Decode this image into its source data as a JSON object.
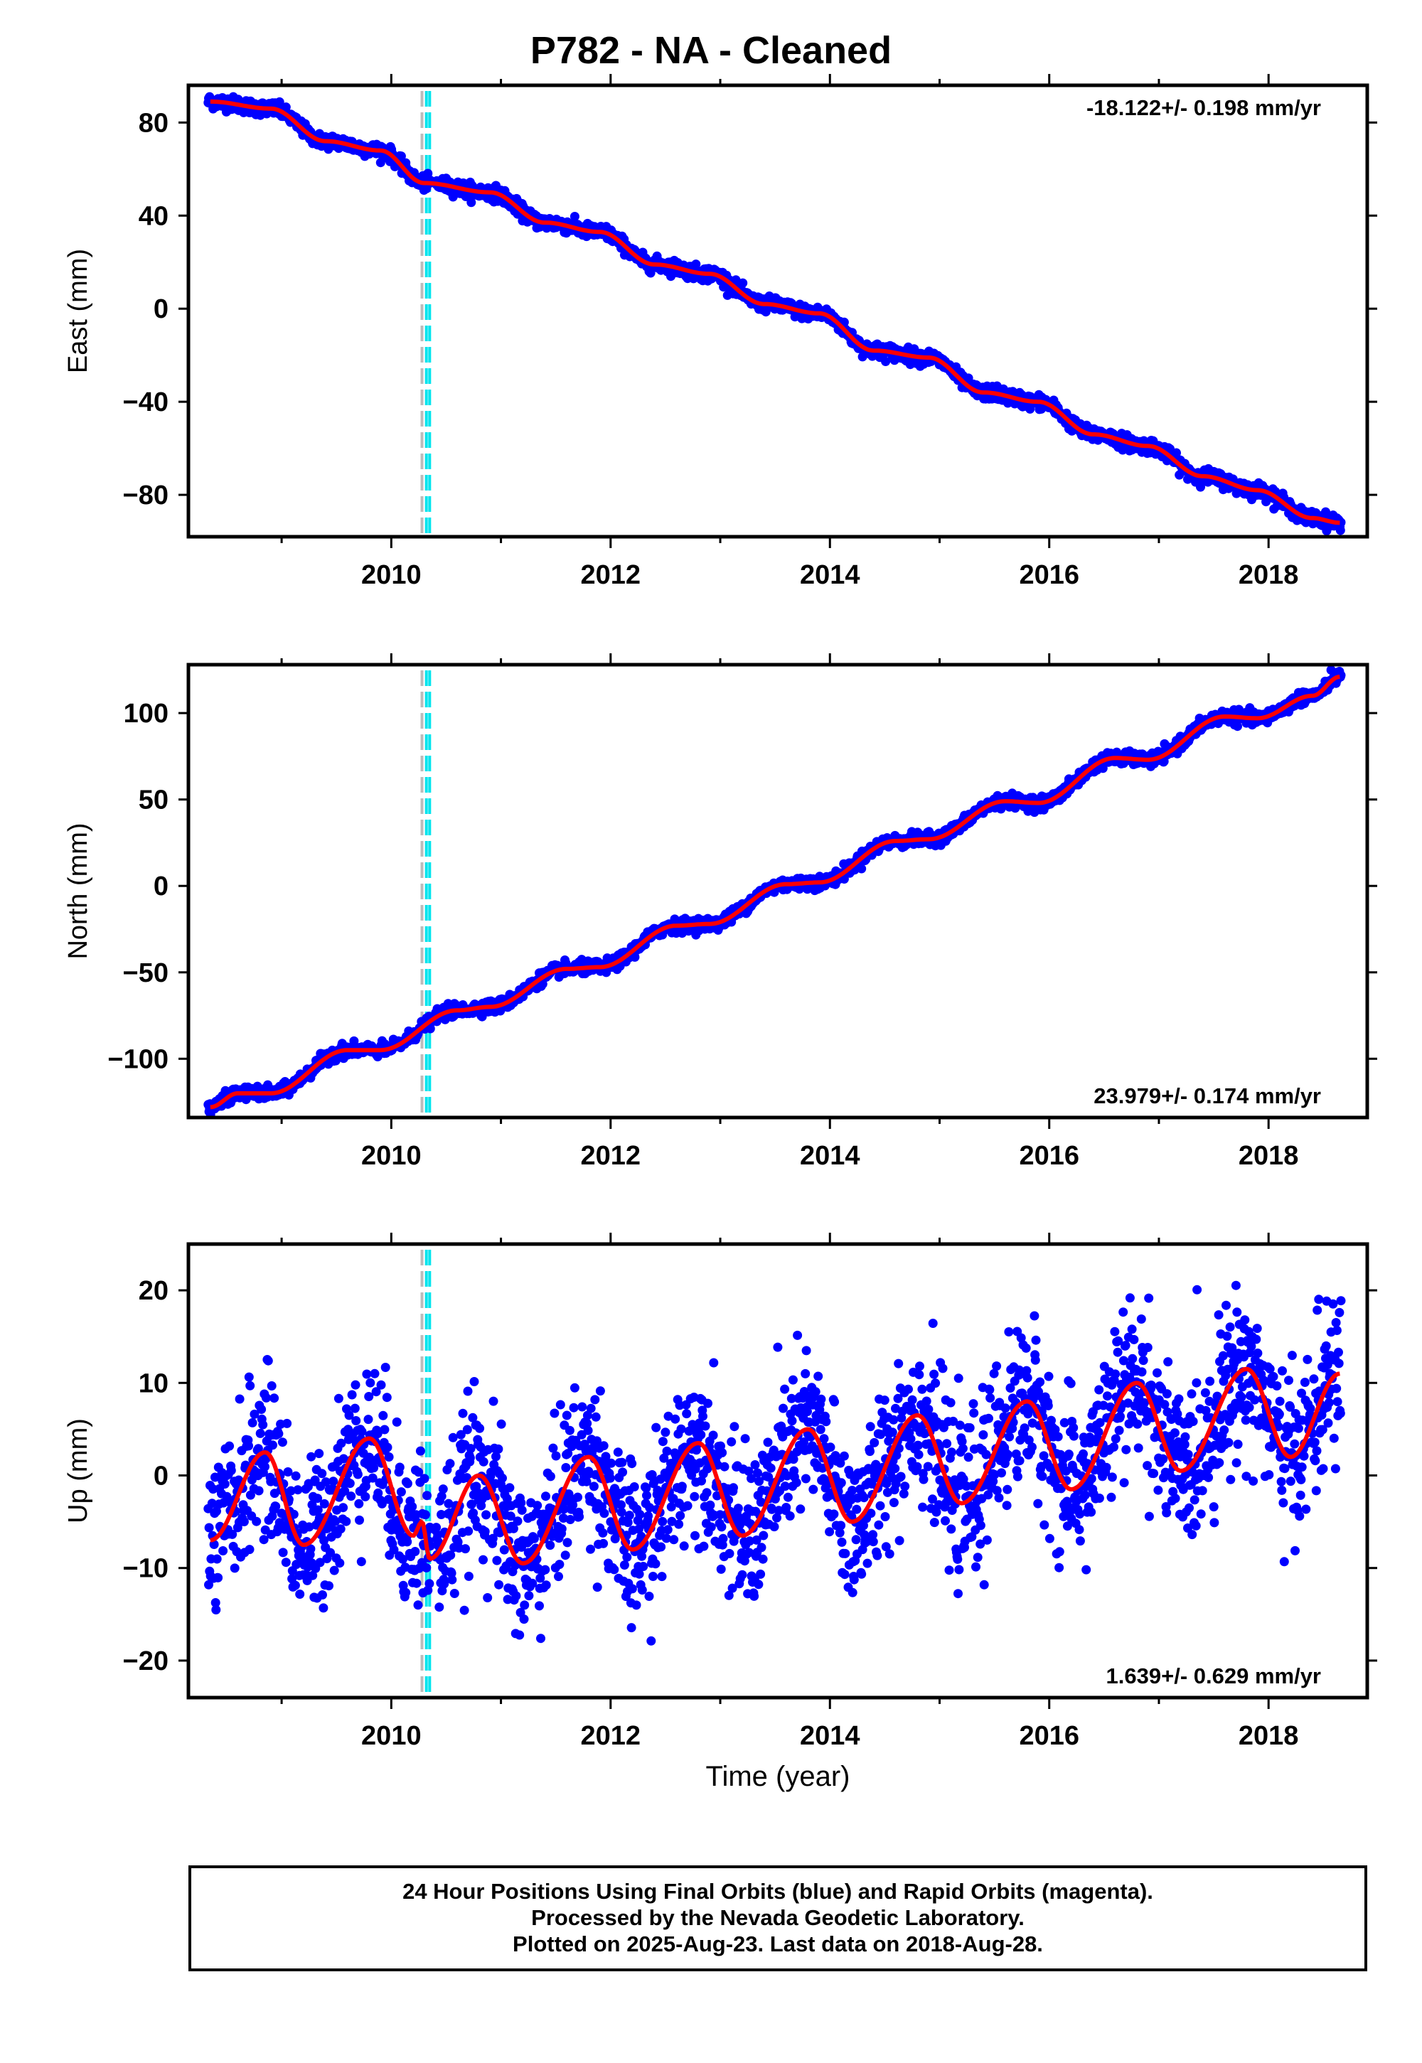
{
  "title": "P782  - NA - Cleaned",
  "footer": {
    "line1": "24 Hour Positions Using Final Orbits (blue) and Rapid Orbits (magenta).",
    "line2": "Processed by the Nevada Geodetic Laboratory.",
    "line3": "Plotted on 2025-Aug-23. Last data on 2018-Aug-28."
  },
  "colors": {
    "data": "#0000ff",
    "model": "#ff0000",
    "equipment_change_gray": "#bbbbbb",
    "equipment_change_cyan": "#00e5ee"
  },
  "chart_data": [
    {
      "type": "scatter",
      "ylabel": "East (mm)",
      "xlabel": "",
      "xlim": [
        2008.15,
        2018.9
      ],
      "ylim": [
        -98,
        96
      ],
      "yticks": [
        80,
        40,
        0,
        -40,
        -80
      ],
      "xticks": [
        2010,
        2012,
        2014,
        2016,
        2018
      ],
      "rate_label": "-18.122+/- 0.198 mm/yr",
      "rate_position": "top-right",
      "start_value": 89.5,
      "end_value": -92,
      "trend": -18.122,
      "noise": 1.5,
      "model_points": [
        [
          2008.35,
          89
        ],
        [
          2008.9,
          86
        ],
        [
          2009.4,
          72
        ],
        [
          2009.9,
          68
        ],
        [
          2010.3,
          54
        ],
        [
          2010.9,
          50
        ],
        [
          2011.4,
          37
        ],
        [
          2011.9,
          33
        ],
        [
          2012.4,
          19
        ],
        [
          2012.9,
          15
        ],
        [
          2013.4,
          2
        ],
        [
          2013.9,
          -2
        ],
        [
          2014.4,
          -18
        ],
        [
          2014.9,
          -21
        ],
        [
          2015.4,
          -36
        ],
        [
          2015.9,
          -40
        ],
        [
          2016.4,
          -54
        ],
        [
          2016.9,
          -59
        ],
        [
          2017.4,
          -72
        ],
        [
          2017.9,
          -78
        ],
        [
          2018.4,
          -90
        ],
        [
          2018.65,
          -92
        ]
      ],
      "vlines": [
        2010.28,
        2010.32,
        2010.35
      ]
    },
    {
      "type": "scatter",
      "ylabel": "North (mm)",
      "xlabel": "",
      "xlim": [
        2008.15,
        2018.9
      ],
      "ylim": [
        -134,
        128
      ],
      "yticks": [
        100,
        50,
        0,
        -50,
        -100
      ],
      "xticks": [
        2010,
        2012,
        2014,
        2016,
        2018
      ],
      "rate_label": "23.979+/- 0.174 mm/yr",
      "rate_position": "bottom-right",
      "start_value": -128,
      "end_value": 121,
      "trend": 23.979,
      "noise": 1.8,
      "model_points": [
        [
          2008.35,
          -128
        ],
        [
          2008.6,
          -120
        ],
        [
          2008.9,
          -120
        ],
        [
          2009.6,
          -95
        ],
        [
          2009.9,
          -95
        ],
        [
          2010.6,
          -72
        ],
        [
          2010.9,
          -70
        ],
        [
          2011.6,
          -48
        ],
        [
          2011.9,
          -47
        ],
        [
          2012.6,
          -23
        ],
        [
          2012.9,
          -22
        ],
        [
          2013.6,
          1
        ],
        [
          2013.9,
          2
        ],
        [
          2014.6,
          26
        ],
        [
          2014.9,
          27
        ],
        [
          2015.6,
          49
        ],
        [
          2015.9,
          48
        ],
        [
          2016.6,
          74
        ],
        [
          2016.9,
          73
        ],
        [
          2017.6,
          98
        ],
        [
          2017.9,
          97
        ],
        [
          2018.4,
          110
        ],
        [
          2018.65,
          121
        ]
      ],
      "vlines": [
        2010.28,
        2010.32,
        2010.35
      ]
    },
    {
      "type": "scatter",
      "ylabel": "Up (mm)",
      "xlabel": "Time (year)",
      "xlim": [
        2008.15,
        2018.9
      ],
      "ylim": [
        -24,
        25
      ],
      "yticks": [
        20,
        10,
        0,
        -10,
        -20
      ],
      "xticks": [
        2010,
        2012,
        2014,
        2016,
        2018
      ],
      "rate_label": "1.639+/- 0.629 mm/yr",
      "rate_position": "bottom-right",
      "trend": 1.639,
      "noise": 4.2,
      "model_points": [
        [
          2008.35,
          -7
        ],
        [
          2008.85,
          2.5
        ],
        [
          2009.2,
          -7.5
        ],
        [
          2009.8,
          4
        ],
        [
          2010.2,
          -6.5
        ],
        [
          2010.28,
          -5
        ],
        [
          2010.35,
          -9
        ],
        [
          2010.8,
          0
        ],
        [
          2011.2,
          -9.5
        ],
        [
          2011.8,
          2
        ],
        [
          2012.2,
          -8
        ],
        [
          2012.8,
          3.5
        ],
        [
          2013.2,
          -6.5
        ],
        [
          2013.8,
          5
        ],
        [
          2014.2,
          -5
        ],
        [
          2014.8,
          6.5
        ],
        [
          2015.2,
          -3
        ],
        [
          2015.8,
          8
        ],
        [
          2016.2,
          -1.5
        ],
        [
          2016.8,
          10
        ],
        [
          2017.2,
          0.5
        ],
        [
          2017.8,
          11.5
        ],
        [
          2018.2,
          2
        ],
        [
          2018.65,
          11
        ]
      ],
      "vlines": [
        2010.28,
        2010.32,
        2010.35
      ]
    }
  ]
}
